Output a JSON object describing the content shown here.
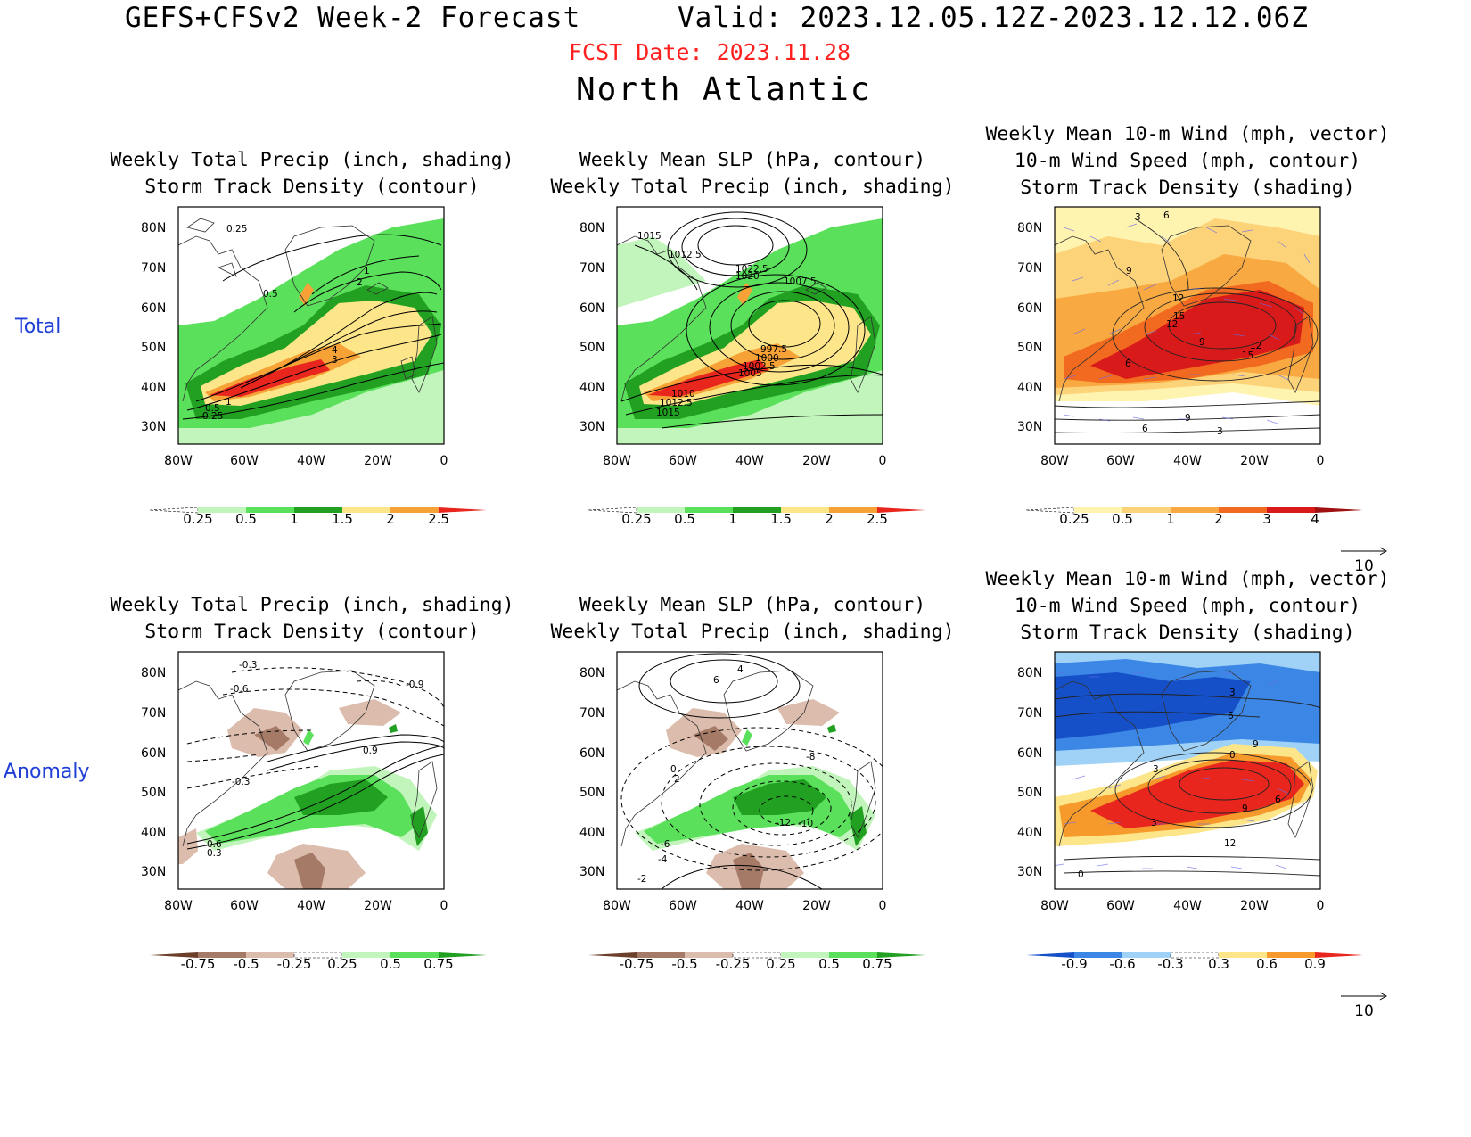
{
  "header": {
    "model": "GEFS+CFSv2 Week-2 Forecast",
    "valid": "Valid: 2023.12.05.12Z-2023.12.12.06Z",
    "fcst_date": "FCST Date: 2023.11.28",
    "region": "North Atlantic"
  },
  "rows": {
    "total": "Total",
    "anomaly": "Anomaly"
  },
  "titles": {
    "t1": [
      "Weekly Total Precip (inch, shading)",
      "Storm Track Density (contour)"
    ],
    "t2": [
      "Weekly Mean SLP (hPa, contour)",
      "Weekly Total Precip (inch, shading)"
    ],
    "t3": [
      "Weekly Mean 10-m Wind (mph, vector)",
      "10-m Wind Speed (mph, contour)",
      "Storm Track Density (shading)"
    ],
    "a1": [
      "Weekly Total Precip (inch, shading)",
      "Storm Track Density (contour)"
    ],
    "a2": [
      "Weekly Mean SLP (hPa, contour)",
      "Weekly Total Precip (inch, shading)"
    ],
    "a3": [
      "Weekly Mean 10-m Wind (mph, vector)",
      "10-m Wind Speed (mph, contour)",
      "Storm Track Density (shading)"
    ]
  },
  "axes": {
    "lat_labels": [
      "80N",
      "70N",
      "60N",
      "50N",
      "40N",
      "30N"
    ],
    "lon_labels": [
      "80W",
      "60W",
      "40W",
      "20W",
      "0"
    ]
  },
  "colorbars": {
    "precip_total": {
      "labels": [
        "0.25",
        "0.5",
        "1",
        "1.5",
        "2",
        "2.5"
      ],
      "colors": [
        "#ffffff",
        "#c2f5bc",
        "#5ae05a",
        "#21a021",
        "#fde58a",
        "#f7a236",
        "#e8261e"
      ]
    },
    "std_total": {
      "labels": [
        "0.25",
        "0.5",
        "1",
        "2",
        "3",
        "4"
      ],
      "colors": [
        "#ffffff",
        "#fff3b0",
        "#fdd37a",
        "#f8a941",
        "#f26a1f",
        "#d91a1a",
        "#a01010"
      ]
    },
    "precip_anom": {
      "labels": [
        "-0.75",
        "-0.5",
        "-0.25",
        "0.25",
        "0.5",
        "0.75"
      ],
      "colors": [
        "#6b3f2a",
        "#a57b67",
        "#dcbcac",
        "#ffffff",
        "#c2f5bc",
        "#5ae05a",
        "#21a021"
      ]
    },
    "std_anom": {
      "labels": [
        "-0.9",
        "-0.6",
        "-0.3",
        "0.3",
        "0.6",
        "0.9"
      ],
      "colors": [
        "#1550c8",
        "#3c87e6",
        "#9fd2f6",
        "#ffffff",
        "#fde58a",
        "#f79a2c",
        "#e8261e"
      ]
    },
    "vector_ref": "10"
  },
  "map_contour_labels": {
    "t1": [
      "0.25",
      "1",
      "2",
      "0.5",
      "4",
      "3",
      "1",
      "0.5",
      "0.25"
    ],
    "t2": [
      "1015",
      "1012.5",
      "1022.5",
      "1020",
      "1007.5",
      "997.5",
      "1000",
      "1002.5",
      "1005",
      "1010",
      "1012.5",
      "1015"
    ],
    "t3": [
      "3",
      "6",
      "9",
      "12",
      "15",
      "12",
      "9",
      "6",
      "12",
      "15",
      "9",
      "6",
      "3"
    ],
    "a1": [
      "-0.3",
      "-0.6",
      "-0.9",
      "0.9",
      "-0.3",
      "0.6",
      "0.3"
    ],
    "a2": [
      "4",
      "6",
      "-8",
      "-12",
      "-10",
      "-6",
      "-4",
      "-2",
      "0",
      "2"
    ],
    "a3": [
      "3",
      "6",
      "9",
      "0",
      "3",
      "9",
      "6",
      "3",
      "12",
      "0"
    ]
  }
}
